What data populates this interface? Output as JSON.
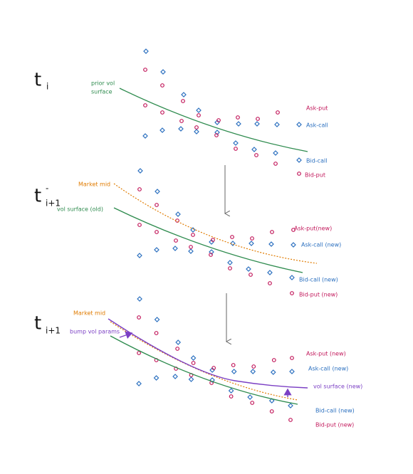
{
  "panels": [
    {
      "time": {
        "base": "t",
        "sub": "i"
      },
      "curve_label": [
        "prior vol",
        "surface"
      ],
      "labels": {
        "ask_put": "Ask-put",
        "ask_call": "Ask-call",
        "bid_call": "Bid-call",
        "bid_put": "Bid-put"
      }
    },
    {
      "time": {
        "base": "t",
        "sup": "-",
        "sub": "i+1"
      },
      "market_mid": "Market mid",
      "curve_label": "vol surface (old)",
      "labels": {
        "ask_put": "Ask-put(new)",
        "ask_call": "Ask-call (new)",
        "bid_call": "Bid-call (new)",
        "bid_put": "Bid-put (new)"
      }
    },
    {
      "time": {
        "base": "t",
        "sub": "i+1"
      },
      "market_mid": "Market mid",
      "bump": "bump vol params",
      "new_surface": "vol surface (new)",
      "labels": {
        "ask_put": "Ask-put (new)",
        "ask_call": "Ask-call (new)",
        "bid_call": "Bid-call (new)",
        "bid_put": "Bid-put (new)"
      }
    }
  ]
}
